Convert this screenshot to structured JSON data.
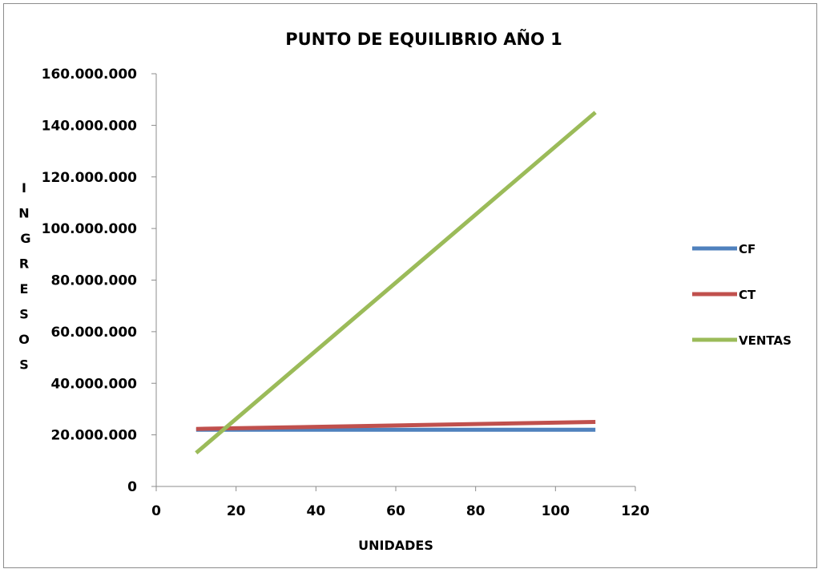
{
  "chart_data": {
    "type": "line",
    "title": "PUNTO DE EQUILIBRIO AÑO 1",
    "xlabel": "UNIDADES",
    "ylabel_letters": [
      "I",
      "N",
      "G",
      "R",
      "E",
      "S",
      "O",
      "S"
    ],
    "xlim": [
      0,
      120
    ],
    "ylim": [
      0,
      160000000
    ],
    "x_ticks": [
      0,
      20,
      40,
      60,
      80,
      100,
      120
    ],
    "x_tick_labels": [
      "0",
      "20",
      "40",
      "60",
      "80",
      "100",
      "120"
    ],
    "y_ticks": [
      0,
      20000000,
      40000000,
      60000000,
      80000000,
      100000000,
      120000000,
      140000000,
      160000000
    ],
    "y_tick_labels": [
      "0",
      "20.000.000",
      "40.000.000",
      "60.000.000",
      "80.000.000",
      "100.000.000",
      "120.000.000",
      "140.000.000",
      "160.000.000"
    ],
    "grid": false,
    "legend_position": "right",
    "series": [
      {
        "name": "CF",
        "color": "#4f81bd",
        "x": [
          10,
          110
        ],
        "values": [
          22000000,
          22000000
        ]
      },
      {
        "name": "CT",
        "color": "#c0504d",
        "x": [
          10,
          110
        ],
        "values": [
          22300000,
          25000000
        ]
      },
      {
        "name": "VENTAS",
        "color": "#9bbb59",
        "x": [
          10,
          110
        ],
        "values": [
          13000000,
          145000000
        ]
      }
    ]
  }
}
